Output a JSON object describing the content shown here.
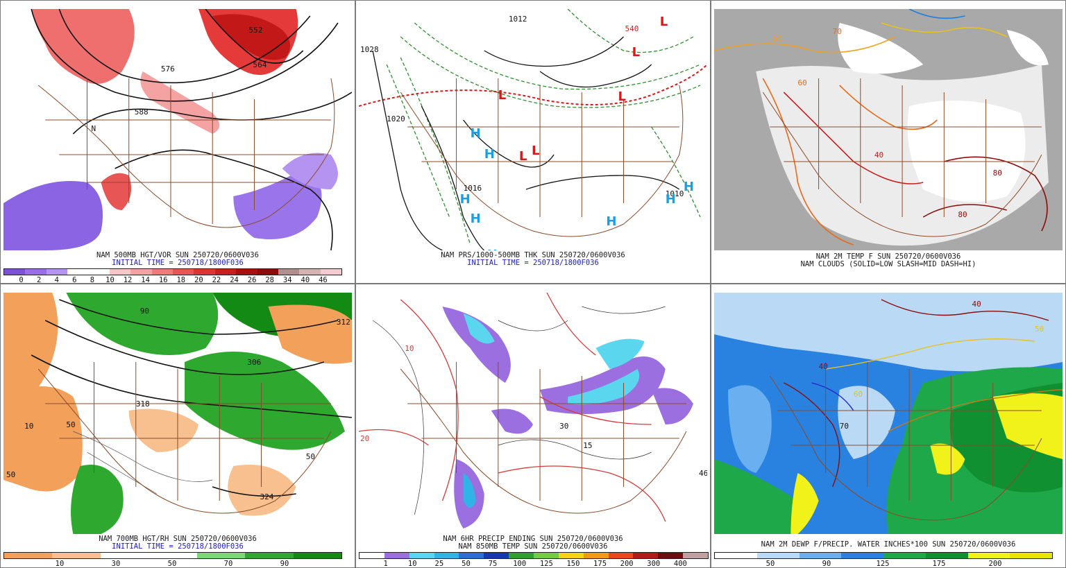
{
  "panels": [
    {
      "id": "p1",
      "caption": [
        "NAM 500MB HGT/VOR SUN 250720/0600V036",
        "INITIAL TIME = 250718/1800F036"
      ],
      "colorbar": {
        "colors": [
          "#7b52d6",
          "#9a6ee8",
          "#b494f0",
          "#ffffff",
          "#ffffff",
          "#f7c6c6",
          "#f4a2a2",
          "#ef7b7b",
          "#e85555",
          "#dd3434",
          "#c71e1e",
          "#a81010",
          "#8e0b0b",
          "#b28f8f",
          "#d6b2b2",
          "#f4cbd0"
        ],
        "labels": [
          "0",
          "2",
          "4",
          "6",
          "8",
          "10",
          "12",
          "14",
          "16",
          "18",
          "20",
          "22",
          "24",
          "26",
          "28",
          "34",
          "40",
          "46"
        ]
      },
      "map_labels": [
        "552",
        "564",
        "576",
        "588",
        "N"
      ]
    },
    {
      "id": "p2",
      "caption": [
        "NAM PRS/1000-500MB THK SUN 250720/0600V036",
        "INITIAL TIME = 250718/1800F036"
      ],
      "map_labels": [
        "1012",
        "1028",
        "1020",
        "1016",
        "540",
        "H",
        "L",
        "1010"
      ]
    },
    {
      "id": "p3",
      "caption": [
        "NAM 2M TEMP F SUN 250720/0600V036",
        "NAM CLOUDS (SOLID=LOW SLASH=MID DASH=HI)"
      ],
      "map_labels": [
        "80",
        "70",
        "60",
        "50",
        "40"
      ]
    },
    {
      "id": "p4",
      "caption": [
        "NAM 700MB HGT/RH SUN 250720/0600V036",
        "INITIAL TIME = 250718/1800F036"
      ],
      "colorbar": {
        "colors": [
          "#f2a05a",
          "#f7c08e",
          "#ffffff",
          "#ffffff",
          "#7cd67c",
          "#2fa82f",
          "#138a13"
        ],
        "labels": [
          "10",
          "30",
          "50",
          "70",
          "90"
        ]
      },
      "map_labels": [
        "50",
        "90",
        "10",
        "312",
        "306",
        "318",
        "324"
      ]
    },
    {
      "id": "p5",
      "caption": [
        "NAM 6HR PRECIP ENDING SUN 250720/0600V036",
        "NAM 850MB TEMP SUN 250720/0600V036"
      ],
      "colorbar": {
        "colors": [
          "#ffffff",
          "#9b6fe0",
          "#5ad6ee",
          "#30b4e8",
          "#2b6fd3",
          "#1836b0",
          "#2da02d",
          "#7ac943",
          "#f2d21b",
          "#f29a1b",
          "#e8491b",
          "#b01b1b",
          "#6e0d0d",
          "#c2a0a0"
        ],
        "labels": [
          "1",
          "10",
          "25",
          "50",
          "75",
          "100",
          "125",
          "150",
          "175",
          "200",
          "300",
          "400"
        ]
      },
      "map_labels": [
        "20",
        "10",
        "15",
        "46",
        "30"
      ]
    },
    {
      "id": "p6",
      "caption": [
        "NAM 2M DEWP F/PRECIP. WATER INCHES*100 SUN 250720/0600V036"
      ],
      "colorbar": {
        "colors": [
          "#ffffff",
          "#b9d9f5",
          "#6aaff0",
          "#2a82e0",
          "#1ea84a",
          "#109030",
          "#f2f21b",
          "#e6e600"
        ],
        "labels": [
          "50",
          "90",
          "125",
          "175",
          "200"
        ]
      },
      "map_labels": [
        "40",
        "50",
        "60",
        "70"
      ]
    }
  ]
}
